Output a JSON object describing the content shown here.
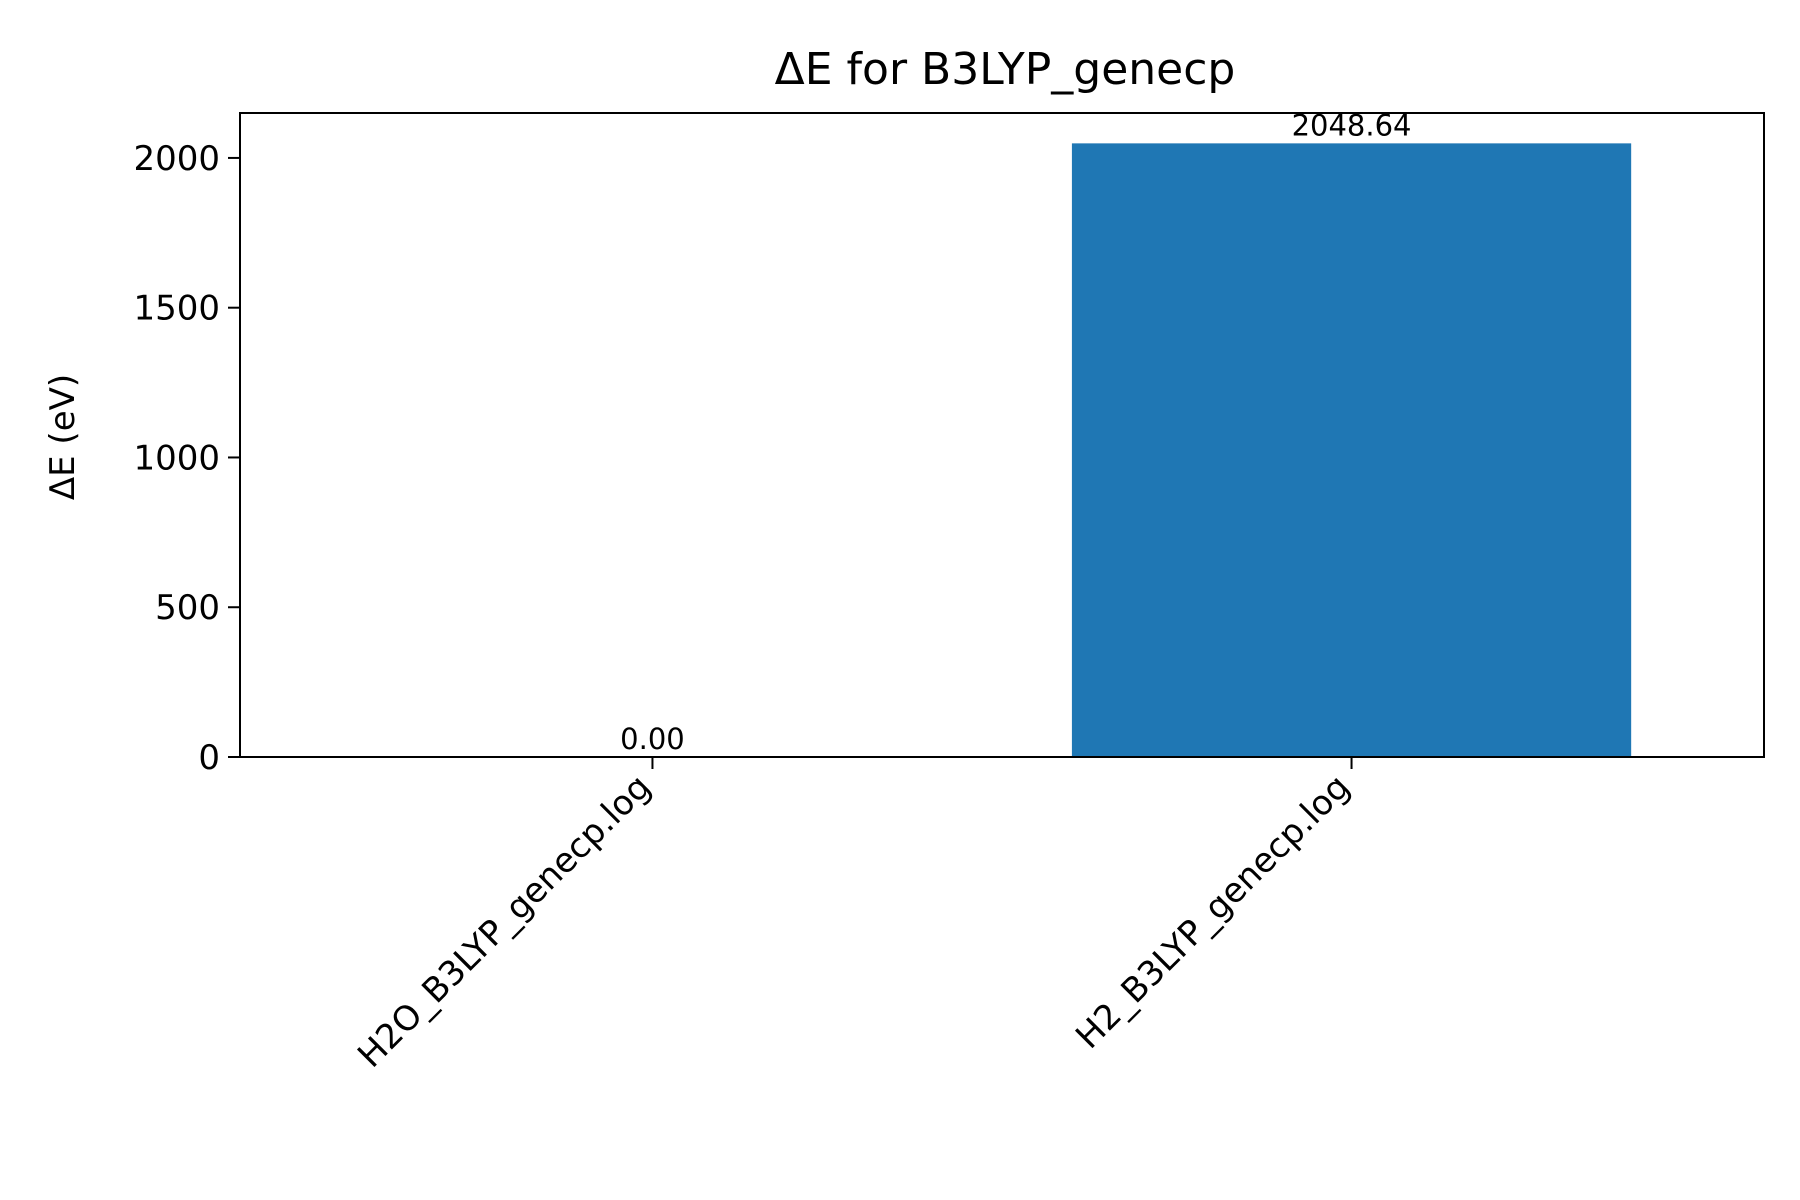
{
  "chart_data": {
    "type": "bar",
    "title": "ΔE for B3LYP_genecp",
    "xlabel": "",
    "ylabel": "ΔE (eV)",
    "categories": [
      "H2O_B3LYP_genecp.log",
      "H2_B3LYP_genecp.log"
    ],
    "values": [
      0.0,
      2048.64
    ],
    "value_labels": [
      "0.00",
      "2048.64"
    ],
    "ylim": [
      0,
      2150
    ],
    "yticks": [
      0,
      500,
      1000,
      1500,
      2000
    ],
    "ytick_labels": [
      "0",
      "500",
      "1000",
      "1500",
      "2000"
    ],
    "grid": false,
    "legend": "none",
    "bar_color": "#1f77b4"
  }
}
